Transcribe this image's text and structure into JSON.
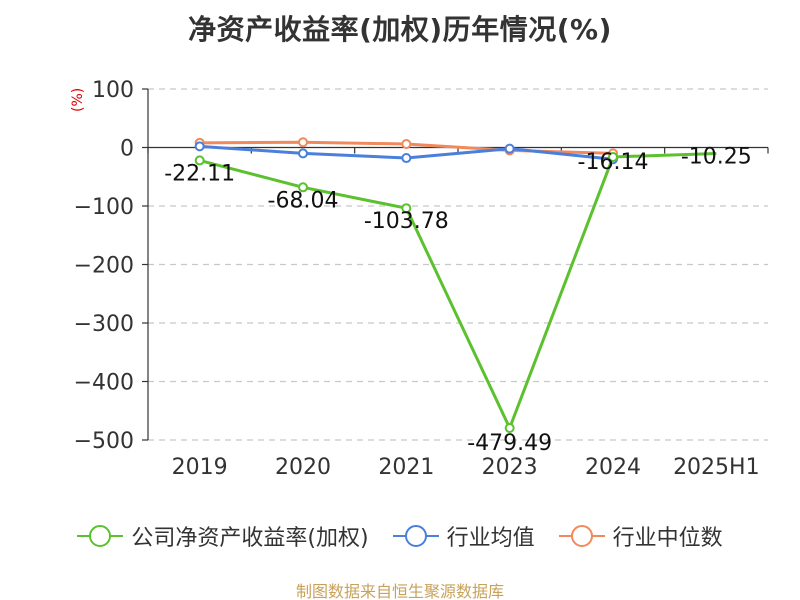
{
  "chart_data": {
    "type": "line",
    "title": "净资产收益率(加权)历年情况(%)",
    "ylabel": "(%)",
    "xlabel": "",
    "categories": [
      "2019",
      "2020",
      "2021",
      "2023",
      "2024",
      "2025H1"
    ],
    "ylim": [
      -500,
      100
    ],
    "yticks": [
      100,
      0,
      -100,
      -200,
      -300,
      -400,
      -500
    ],
    "ytick_labels": [
      "100",
      "0",
      "−100",
      "−200",
      "−300",
      "−400",
      "−500"
    ],
    "grid": true,
    "legend_position": "bottom",
    "series": [
      {
        "name": "公司净资产收益率(加权)",
        "color": "#5cc12f",
        "values": [
          -22.11,
          -68.04,
          -103.78,
          -479.49,
          -16.14,
          -10.25
        ],
        "data_labels": [
          "-22.11",
          "-68.04",
          "-103.78",
          "-479.49",
          "-16.14",
          "-10.25"
        ]
      },
      {
        "name": "行业均值",
        "color": "#4a7fdc",
        "values": [
          2,
          -10,
          -18,
          -2,
          -20,
          null
        ]
      },
      {
        "name": "行业中位数",
        "color": "#f08a5d",
        "values": [
          8,
          9,
          6,
          -5,
          -10,
          null
        ]
      }
    ]
  },
  "footer": {
    "source": "制图数据来自恒生聚源数据库"
  }
}
